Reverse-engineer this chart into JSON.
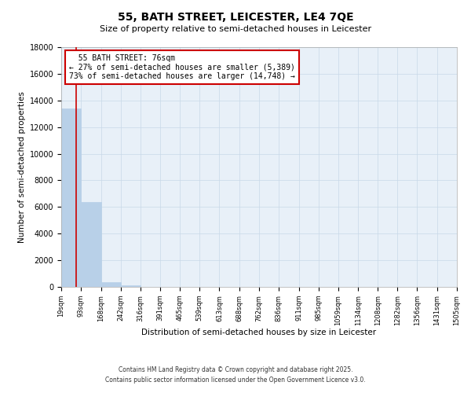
{
  "title": "55, BATH STREET, LEICESTER, LE4 7QE",
  "subtitle": "Size of property relative to semi-detached houses in Leicester",
  "xlabel": "Distribution of semi-detached houses by size in Leicester",
  "ylabel": "Number of semi-detached properties",
  "bar_values": [
    13400,
    6400,
    350,
    100,
    0,
    0,
    0,
    0,
    0,
    0,
    0,
    0,
    0,
    0,
    0,
    0,
    0,
    0,
    0,
    0
  ],
  "bin_edges": [
    19,
    93,
    168,
    242,
    316,
    391,
    465,
    539,
    613,
    688,
    762,
    836,
    911,
    985,
    1059,
    1134,
    1208,
    1282,
    1356,
    1431,
    1505
  ],
  "tick_labels": [
    "19sqm",
    "93sqm",
    "168sqm",
    "242sqm",
    "316sqm",
    "391sqm",
    "465sqm",
    "539sqm",
    "613sqm",
    "688sqm",
    "762sqm",
    "836sqm",
    "911sqm",
    "985sqm",
    "1059sqm",
    "1134sqm",
    "1208sqm",
    "1282sqm",
    "1356sqm",
    "1431sqm",
    "1505sqm"
  ],
  "bar_color": "#b8d0e8",
  "bar_edge_color": "#b8d0e8",
  "grid_color": "#c8d8e8",
  "bg_color": "#e8f0f8",
  "property_size": 76,
  "property_label": "55 BATH STREET: 76sqm",
  "pct_smaller": 27,
  "pct_larger": 73,
  "count_smaller": 5389,
  "count_larger": 14748,
  "vline_color": "#cc0000",
  "annotation_box_color": "#cc0000",
  "ylim": [
    0,
    18000
  ],
  "yticks": [
    0,
    2000,
    4000,
    6000,
    8000,
    10000,
    12000,
    14000,
    16000,
    18000
  ],
  "footer_line1": "Contains HM Land Registry data © Crown copyright and database right 2025.",
  "footer_line2": "Contains public sector information licensed under the Open Government Licence v3.0."
}
